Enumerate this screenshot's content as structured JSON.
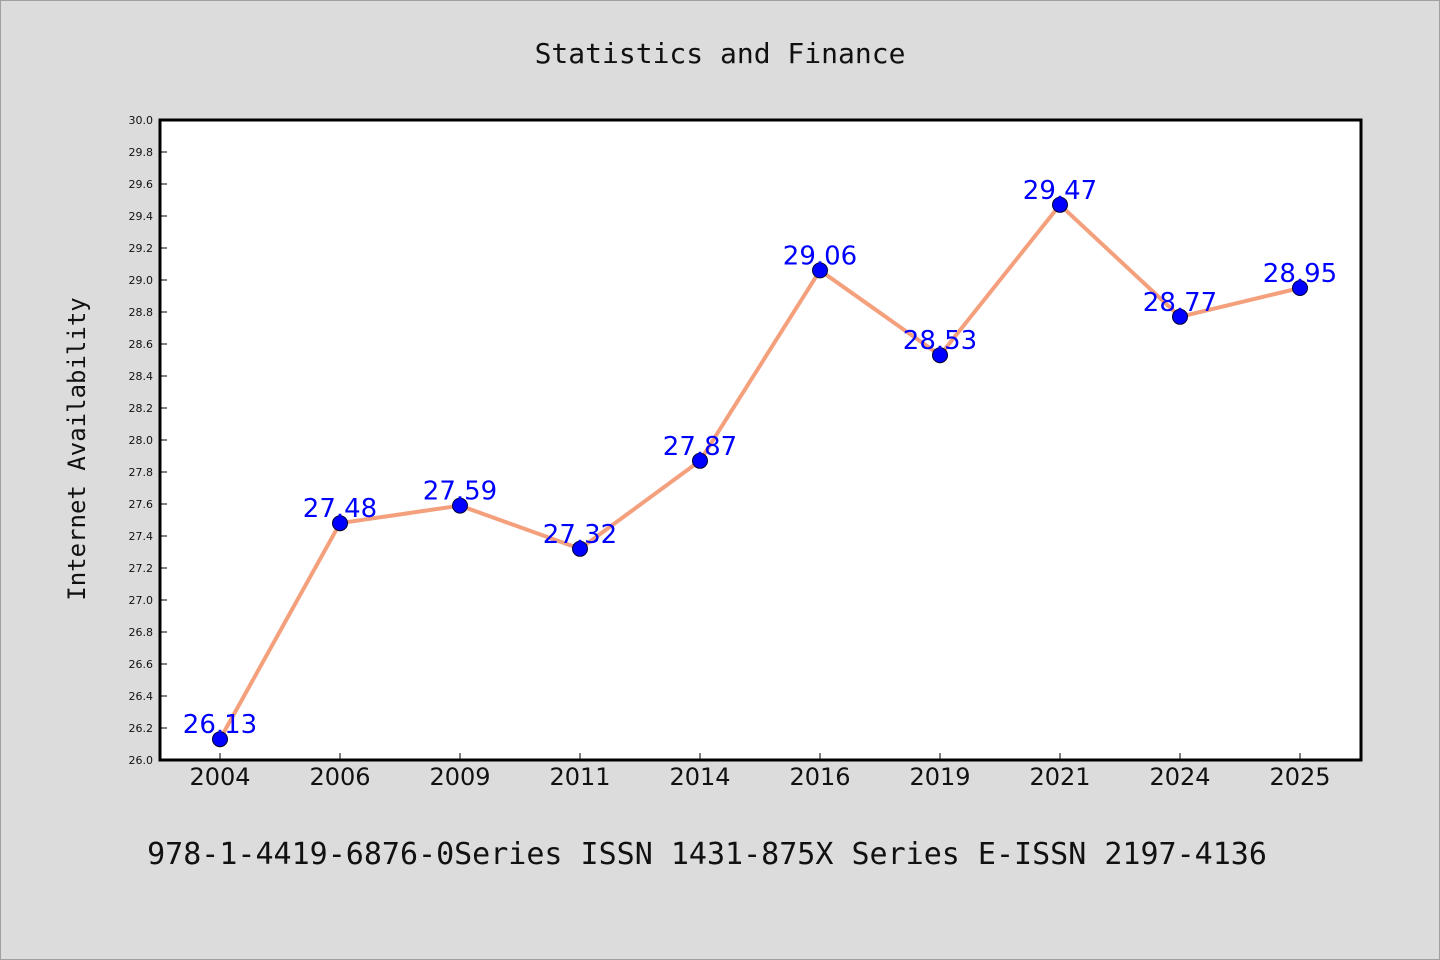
{
  "chart_data": {
    "type": "line",
    "title": "Statistics and Finance",
    "xlabel": "",
    "ylabel": "Internet Availability",
    "categories": [
      "2004",
      "2006",
      "2009",
      "2011",
      "2014",
      "2016",
      "2019",
      "2021",
      "2024",
      "2025"
    ],
    "series": [
      {
        "values": [
          26.13,
          27.48,
          27.59,
          27.32,
          27.87,
          29.06,
          28.53,
          29.47,
          28.77,
          28.95
        ],
        "labels": [
          "26.13",
          "27.48",
          "27.59",
          "27.32",
          "27.87",
          "29.06",
          "28.53",
          "29.47",
          "28.77",
          "28.95"
        ],
        "line_color": "#f4a07c",
        "marker_color": "#0000ff"
      }
    ],
    "ylim": [
      26.0,
      30.0
    ],
    "yticks": [
      "26.0",
      "26.2",
      "26.4",
      "26.6",
      "26.8",
      "27.0",
      "27.2",
      "27.4",
      "27.6",
      "27.8",
      "28.0",
      "28.2",
      "28.4",
      "28.6",
      "28.8",
      "29.0",
      "29.2",
      "29.4",
      "29.6",
      "29.8",
      "30.0"
    ],
    "grid": false,
    "legend": "none",
    "footer": "978-1-4419-6876-0Series ISSN 1431-875X Series E-ISSN 2197-4136"
  },
  "colors": {
    "background": "#dcdcdc",
    "plot_area": "#ffffff",
    "axis": "#000000"
  }
}
